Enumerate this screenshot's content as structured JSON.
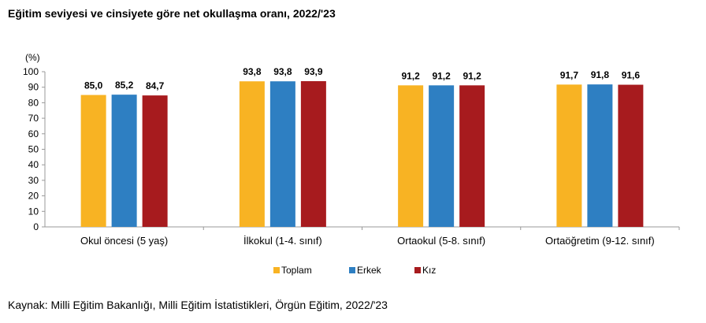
{
  "chart_data": {
    "type": "bar",
    "title": "Eğitim seviyesi ve cinsiyete göre net okullaşma oranı, 2022/'23",
    "ylabel": "(%)",
    "ylim": [
      0,
      100
    ],
    "yticks": [
      0,
      10,
      20,
      30,
      40,
      50,
      60,
      70,
      80,
      90,
      100
    ],
    "categories": [
      "Okul öncesi (5 yaş)",
      "İlkokul (1-4. sınıf)",
      "Ortaokul (5-8. sınıf)",
      "Ortaöğretim (9-12. sınıf)"
    ],
    "series": [
      {
        "name": "Toplam",
        "color": "#f8b323",
        "values": [
          85.0,
          93.8,
          91.2,
          91.7
        ],
        "labels": [
          "85,0",
          "93,8",
          "91,2",
          "91,7"
        ]
      },
      {
        "name": "Erkek",
        "color": "#2e7fc2",
        "values": [
          85.2,
          93.8,
          91.2,
          91.8
        ],
        "labels": [
          "85,2",
          "93,8",
          "91,2",
          "91,8"
        ]
      },
      {
        "name": "Kız",
        "color": "#a71b1e",
        "values": [
          84.7,
          93.9,
          91.2,
          91.6
        ],
        "labels": [
          "84,7",
          "93,9",
          "91,2",
          "91,6"
        ]
      }
    ],
    "grid": false,
    "legend": "bottom"
  },
  "source": "Kaynak: Milli Eğitim Bakanlığı, Milli Eğitim İstatistikleri, Örgün Eğitim, 2022/'23"
}
